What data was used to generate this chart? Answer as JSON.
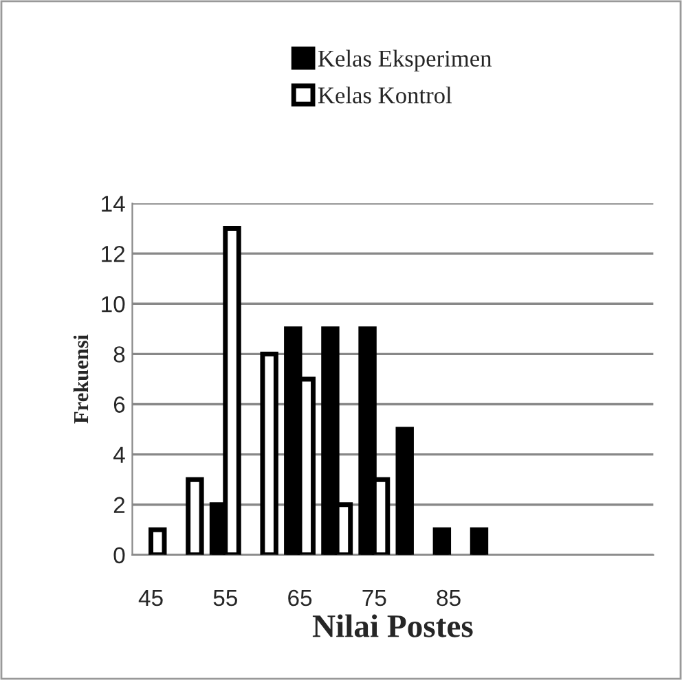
{
  "chart_data": {
    "type": "bar",
    "xlabel": "Nilai Postes",
    "ylabel": "Frekuensi",
    "categories": [
      "45",
      null,
      "55",
      null,
      "65",
      null,
      "75",
      null,
      "85",
      null,
      null,
      null,
      null,
      null
    ],
    "series": [
      {
        "name": "Kelas Eksperimen",
        "color": "#000000",
        "values": [
          null,
          null,
          2,
          null,
          9,
          9,
          9,
          5,
          1,
          1,
          null,
          null,
          null,
          null
        ]
      },
      {
        "name": "Kelas Kontrol",
        "color": "#ffffff",
        "values": [
          1,
          3,
          13,
          8,
          7,
          2,
          3,
          null,
          null,
          null,
          null,
          null,
          null,
          null
        ]
      }
    ],
    "ylim": [
      0,
      14
    ],
    "yticks": [
      0,
      2,
      4,
      6,
      8,
      10,
      12,
      14
    ],
    "grid": "y",
    "legend": "top"
  }
}
